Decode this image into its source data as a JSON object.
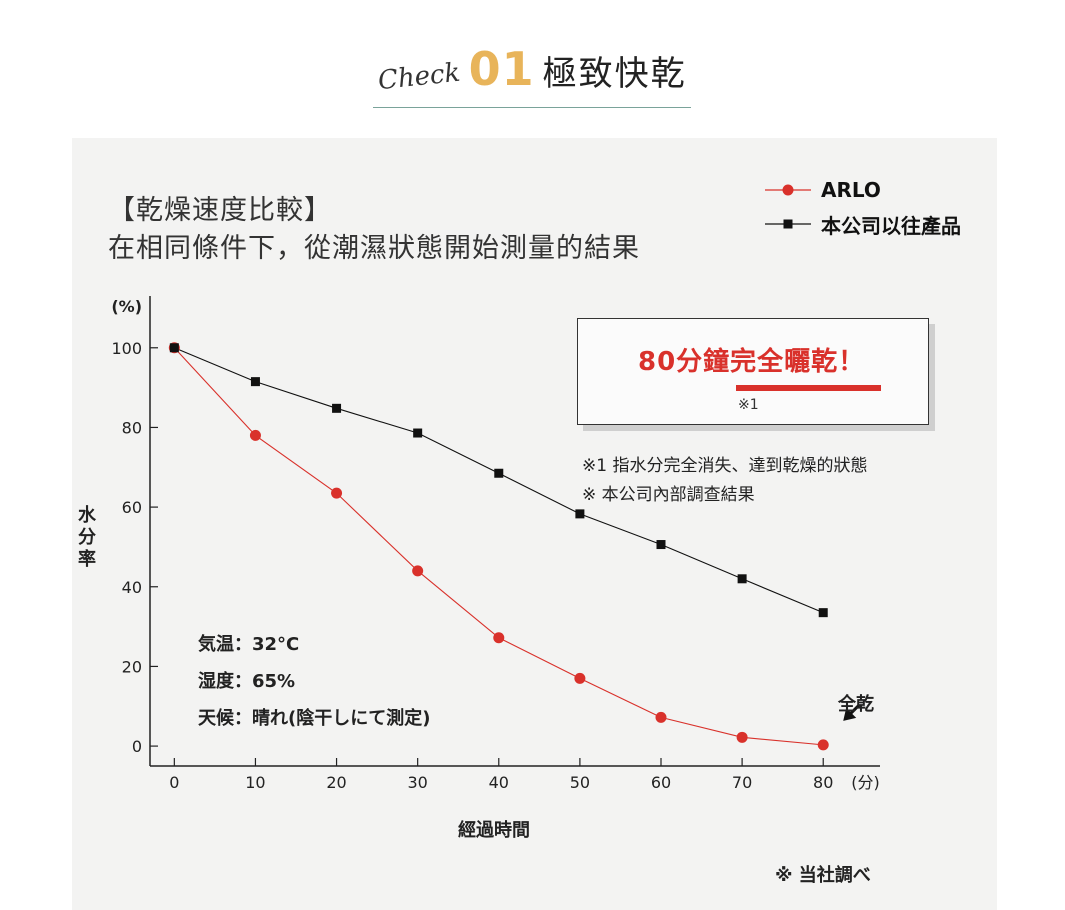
{
  "header": {
    "check": "Check",
    "number": "01",
    "title": "極致快乾"
  },
  "subhead": {
    "line1": "【乾燥速度比較】",
    "line2": "在相同條件下，從潮濕狀態開始測量的結果"
  },
  "legend": [
    {
      "name": "ARLO",
      "color": "#d9312b",
      "marker": "circle"
    },
    {
      "name": "本公司以往產品",
      "color": "#111111",
      "marker": "square"
    }
  ],
  "callout": {
    "text": "80分鐘完全曬乾！",
    "note": "※1"
  },
  "notes": [
    "※1 指水分完全消失、達到乾燥的狀態",
    "※ 本公司內部調查結果"
  ],
  "conditions": [
    "気温：32°C",
    "湿度：65%",
    "天候：晴れ(陰干しにて測定)"
  ],
  "dry_label": "全乾",
  "source": "※ 当社調べ",
  "chart_data": {
    "type": "line",
    "x": [
      0,
      10,
      20,
      30,
      40,
      50,
      60,
      70,
      80
    ],
    "series": [
      {
        "name": "ARLO",
        "values": [
          100,
          78,
          63.5,
          44,
          27.2,
          17,
          7.2,
          2.2,
          0.3
        ],
        "color": "#d9312b",
        "marker": "circle"
      },
      {
        "name": "本公司以往產品",
        "values": [
          100,
          91.5,
          84.8,
          78.6,
          68.5,
          58.3,
          50.6,
          42,
          33.5
        ],
        "color": "#111111",
        "marker": "square"
      }
    ],
    "xlabel": "經過時間",
    "ylabel": "水分率",
    "yunit": "(%)",
    "xunit": "(分)",
    "xticks": [
      0,
      10,
      20,
      30,
      40,
      50,
      60,
      70,
      80
    ],
    "yticks": [
      0,
      20,
      40,
      60,
      80,
      100
    ],
    "xlim": [
      -3,
      87
    ],
    "ylim": [
      -5,
      113
    ],
    "grid": false
  }
}
